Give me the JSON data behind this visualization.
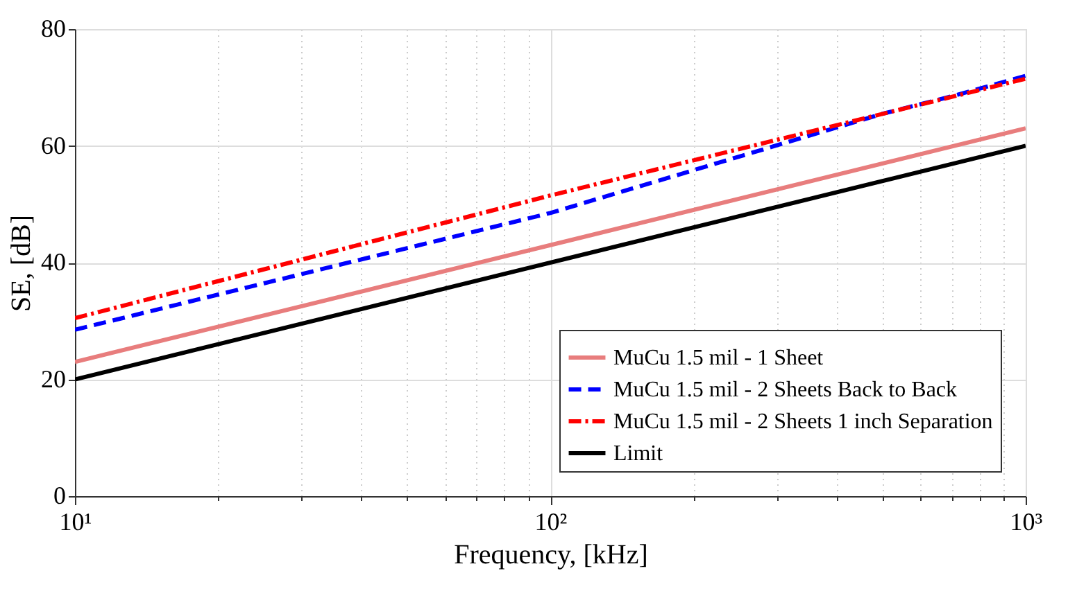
{
  "chart_data": {
    "type": "line",
    "xlabel": "Frequency, [kHz]",
    "ylabel": "SE, [dB]",
    "log": "x",
    "xlim": [
      10,
      1000
    ],
    "ylim": [
      0,
      80
    ],
    "xticks": [
      {
        "value": 10,
        "label": "10¹"
      },
      {
        "value": 20,
        "label": null
      },
      {
        "value": 30,
        "label": null
      },
      {
        "value": 40,
        "label": null
      },
      {
        "value": 50,
        "label": null
      },
      {
        "value": 60,
        "label": null
      },
      {
        "value": 70,
        "label": null
      },
      {
        "value": 80,
        "label": null
      },
      {
        "value": 90,
        "label": null
      },
      {
        "value": 100,
        "label": "10²"
      },
      {
        "value": 200,
        "label": null
      },
      {
        "value": 300,
        "label": null
      },
      {
        "value": 400,
        "label": null
      },
      {
        "value": 500,
        "label": null
      },
      {
        "value": 600,
        "label": null
      },
      {
        "value": 700,
        "label": null
      },
      {
        "value": 800,
        "label": null
      },
      {
        "value": 900,
        "label": null
      },
      {
        "value": 1000,
        "label": "10³"
      }
    ],
    "yticks": [
      0,
      20,
      40,
      60,
      80
    ],
    "grid": true,
    "legend": "bottom right",
    "marker": "none",
    "series": [
      {
        "name": "MuCu 1.5 mil - 1 Sheet",
        "color": "#e87d7d",
        "line_style": "solid",
        "x": [
          10,
          100,
          1000
        ],
        "values": [
          23,
          43,
          63
        ]
      },
      {
        "name": "MuCu 1.5 mil - 2 Sheets Back to Back",
        "color": "#0000ff",
        "line_style": "dashed",
        "x": [
          10,
          100,
          500,
          700,
          1000
        ],
        "values": [
          28.5,
          48.5,
          65.5,
          68.5,
          72
        ]
      },
      {
        "name": "MuCu 1.5 mil - 2 Sheets 1 inch Separation",
        "color": "#ff0000",
        "line_style": "dashdot",
        "x": [
          10,
          100,
          1000
        ],
        "values": [
          30.5,
          51.5,
          71.5
        ]
      },
      {
        "name": "Limit",
        "color": "#000000",
        "line_style": "solid",
        "x": [
          10,
          100,
          1000
        ],
        "values": [
          20,
          40,
          60
        ]
      }
    ]
  }
}
